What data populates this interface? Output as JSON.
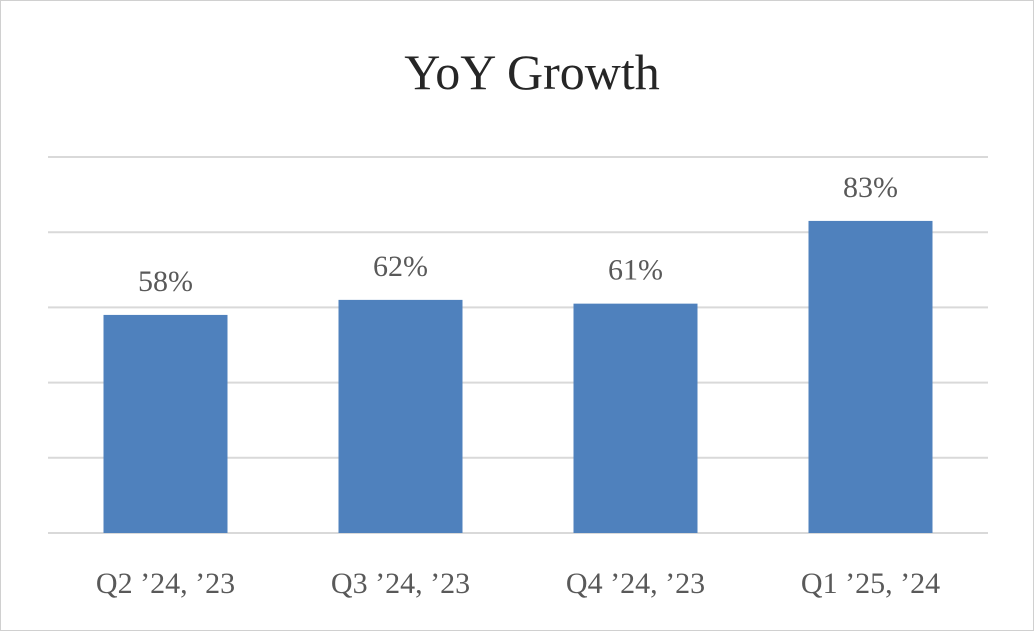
{
  "chart_data": {
    "type": "bar",
    "title": "YoY Growth",
    "categories": [
      "Q2 ’24, ’23",
      "Q3 ’24, ’23",
      "Q4 ’24, ’23",
      "Q1 ’25, ’24"
    ],
    "values": [
      58,
      62,
      61,
      83
    ],
    "data_labels": [
      "58%",
      "62%",
      "61%",
      "83%"
    ],
    "xlabel": "",
    "ylabel": "",
    "ylim": [
      0,
      100
    ],
    "grid": true,
    "bar_color": "#4f81bd"
  }
}
